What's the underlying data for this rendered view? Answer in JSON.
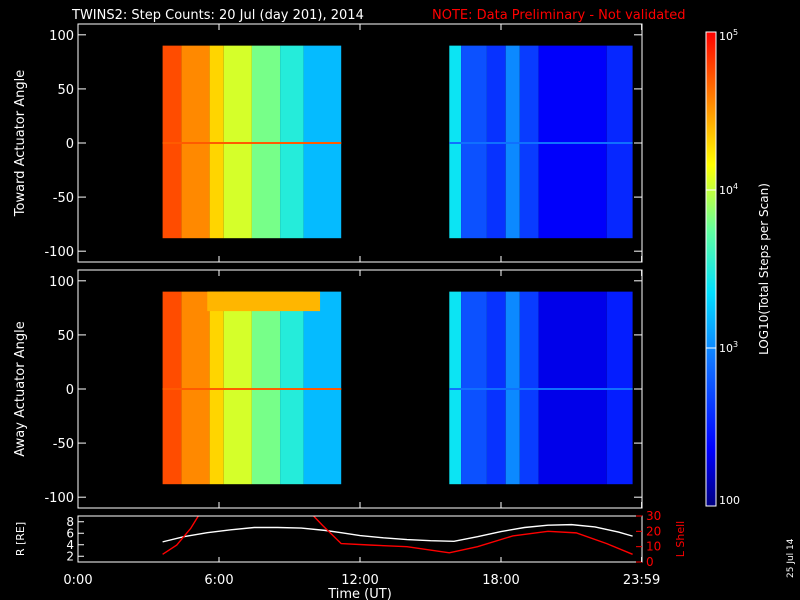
{
  "title": {
    "main": "TWINS2: Step Counts: 20 Jul (day 201), 2014",
    "note": "NOTE: Data Preliminary - Not validated",
    "note_color": "#ff0000"
  },
  "date_stamp": "25 Jul 14",
  "colorbar": {
    "label": "LOG10(Total Steps per Scan)",
    "ticks": [
      "10^5",
      "10^4",
      "10^3",
      "100"
    ],
    "colormap": "rainbow",
    "range": [
      100,
      100000
    ],
    "scale": "log"
  },
  "chart_data": [
    {
      "type": "heatmap",
      "panel": "toward",
      "ylabel": "Toward Actuator Angle",
      "yticks": [
        "100",
        "50",
        "0",
        "-50",
        "-100"
      ],
      "ylim": [
        -110,
        110
      ],
      "xlim": [
        0,
        24
      ],
      "data_y_range": [
        -88,
        90
      ],
      "segments": [
        {
          "x_range": [
            3.6,
            11.2
          ],
          "columns": [
            {
              "x": [
                3.6,
                4.4
              ],
              "log10": 4.75
            },
            {
              "x": [
                4.4,
                5.6
              ],
              "log10": 4.55
            },
            {
              "x": [
                5.6,
                6.2
              ],
              "log10": 4.3
            },
            {
              "x": [
                6.2,
                7.4
              ],
              "log10": 4.05
            },
            {
              "x": [
                7.4,
                8.6
              ],
              "log10": 3.8
            },
            {
              "x": [
                8.6,
                9.6
              ],
              "log10": 3.5
            },
            {
              "x": [
                9.6,
                11.2
              ],
              "log10": 3.2
            }
          ]
        },
        {
          "x_range": [
            15.8,
            23.6
          ],
          "columns": [
            {
              "x": [
                15.8,
                16.3
              ],
              "log10": 3.4
            },
            {
              "x": [
                16.3,
                17.4
              ],
              "log10": 2.75
            },
            {
              "x": [
                17.4,
                18.2
              ],
              "log10": 2.6
            },
            {
              "x": [
                18.2,
                18.8
              ],
              "log10": 3.0
            },
            {
              "x": [
                18.8,
                19.6
              ],
              "log10": 2.65
            },
            {
              "x": [
                19.6,
                22.5
              ],
              "log10": 2.35
            },
            {
              "x": [
                22.5,
                23.6
              ],
              "log10": 2.55
            }
          ]
        }
      ]
    },
    {
      "type": "heatmap",
      "panel": "away",
      "ylabel": "Away Actuator Angle",
      "yticks": [
        "100",
        "50",
        "0",
        "-50",
        "-100"
      ],
      "ylim": [
        -110,
        110
      ],
      "xlim": [
        0,
        24
      ],
      "data_y_range": [
        -88,
        90
      ],
      "segments": [
        {
          "x_range": [
            3.6,
            11.2
          ],
          "columns": [
            {
              "x": [
                3.6,
                4.4
              ],
              "log10": 4.75
            },
            {
              "x": [
                4.4,
                5.6
              ],
              "log10": 4.55
            },
            {
              "x": [
                5.6,
                6.2
              ],
              "log10": 4.3
            },
            {
              "x": [
                6.2,
                7.4
              ],
              "log10": 4.05
            },
            {
              "x": [
                7.4,
                8.6
              ],
              "log10": 3.8
            },
            {
              "x": [
                8.6,
                9.6
              ],
              "log10": 3.5
            },
            {
              "x": [
                9.6,
                11.2
              ],
              "log10": 3.2
            }
          ],
          "feature": {
            "x": [
              5.5,
              10.3
            ],
            "y": [
              72,
              90
            ],
            "log10": 4.4
          }
        },
        {
          "x_range": [
            15.8,
            23.6
          ],
          "columns": [
            {
              "x": [
                15.8,
                16.3
              ],
              "log10": 3.4
            },
            {
              "x": [
                16.3,
                17.4
              ],
              "log10": 2.75
            },
            {
              "x": [
                17.4,
                18.2
              ],
              "log10": 2.6
            },
            {
              "x": [
                18.2,
                18.8
              ],
              "log10": 3.0
            },
            {
              "x": [
                18.8,
                19.6
              ],
              "log10": 2.65
            },
            {
              "x": [
                19.6,
                22.5
              ],
              "log10": 2.3
            },
            {
              "x": [
                22.5,
                23.6
              ],
              "log10": 2.5
            }
          ]
        }
      ]
    },
    {
      "type": "line",
      "panel": "orbit",
      "ylabel": "R [RE]",
      "yticks": [
        "8",
        "6",
        "4",
        "2"
      ],
      "ylim": [
        1,
        9
      ],
      "y2label": "L Shell",
      "y2ticks": [
        "30",
        "20",
        "10",
        "0"
      ],
      "y2lim": [
        0,
        30
      ],
      "xlabel": "Time (UT)",
      "xticks": [
        {
          "x": 0,
          "label": "0:00"
        },
        {
          "x": 6,
          "label": "6:00"
        },
        {
          "x": 12,
          "label": "12:00"
        },
        {
          "x": 18,
          "label": "18:00"
        },
        {
          "x": 23.983,
          "label": "23:59"
        }
      ],
      "xlim": [
        0,
        24
      ],
      "series": [
        {
          "name": "R",
          "color": "#ffffff",
          "x": [
            3.6,
            4.5,
            5.5,
            6.5,
            7.5,
            8.5,
            9.5,
            10.5,
            11.2,
            12,
            13,
            14,
            15,
            16,
            17,
            18,
            19,
            20,
            21,
            22,
            23,
            23.6
          ],
          "y": [
            4.5,
            5.4,
            6.1,
            6.6,
            7.0,
            7.0,
            6.9,
            6.5,
            6.1,
            5.6,
            5.2,
            4.9,
            4.7,
            4.6,
            5.4,
            6.3,
            7.0,
            7.4,
            7.5,
            7.1,
            6.2,
            5.5
          ]
        },
        {
          "name": "L Shell",
          "color": "#ff0000",
          "x": [
            3.6,
            4.2,
            4.8,
            5.2,
            9.9,
            10.4,
            11.2,
            12.5,
            14,
            15.8,
            17,
            18.5,
            20,
            21.2,
            22.5,
            23.6
          ],
          "y": [
            5,
            11,
            22,
            32,
            32,
            24,
            12,
            11,
            10,
            6,
            10,
            17,
            20,
            19,
            12,
            5
          ]
        }
      ]
    }
  ]
}
